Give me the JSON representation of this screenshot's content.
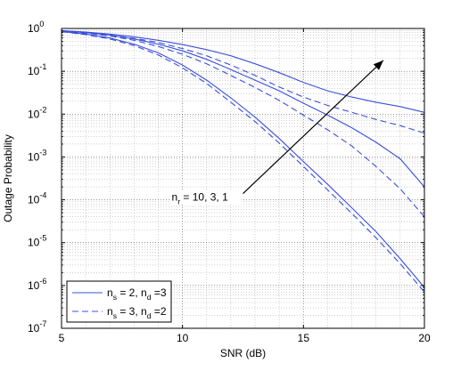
{
  "chart_data": {
    "type": "line",
    "xlabel": "SNR (dB)",
    "ylabel": "Outage Probability",
    "xlim": [
      5,
      20
    ],
    "ylim": [
      1e-07,
      1
    ],
    "yscale": "log",
    "grid": true,
    "x_ticks": [
      5,
      10,
      15,
      20
    ],
    "x_tick_labels": [
      "5",
      "10",
      "15",
      "20"
    ],
    "y_ticks": [
      1e-07,
      1e-06,
      1e-05,
      0.0001,
      0.001,
      0.01,
      0.1,
      1
    ],
    "y_tick_labels": [
      {
        "base": "10",
        "exp": "-7"
      },
      {
        "base": "10",
        "exp": "-6"
      },
      {
        "base": "10",
        "exp": "-5"
      },
      {
        "base": "10",
        "exp": "-4"
      },
      {
        "base": "10",
        "exp": "-3"
      },
      {
        "base": "10",
        "exp": "-2"
      },
      {
        "base": "10",
        "exp": "-1"
      },
      {
        "base": "10",
        "exp": "0"
      }
    ],
    "legend": {
      "placement": "bottom-left",
      "entries": [
        {
          "style": "solid",
          "text": [
            {
              "t": "n"
            },
            {
              "t": "s",
              "sub": true
            },
            {
              "t": " = 2, n"
            },
            {
              "t": "d",
              "sub": true
            },
            {
              "t": " =3"
            }
          ]
        },
        {
          "style": "dashed",
          "text": [
            {
              "t": "n"
            },
            {
              "t": "s",
              "sub": true
            },
            {
              "t": " = 3, n"
            },
            {
              "t": "d",
              "sub": true
            },
            {
              "t": " =2"
            }
          ]
        }
      ]
    },
    "annotation": {
      "text": [
        {
          "t": "n"
        },
        {
          "t": "r",
          "sub": true
        },
        {
          "t": " = 10, 3, 1"
        }
      ],
      "arrow_from": [
        12.5,
        0.00014
      ],
      "arrow_to": [
        18.3,
        0.18
      ]
    },
    "color": "#3b4fd9",
    "series": [
      {
        "style": "solid",
        "x": [
          5,
          6,
          7,
          8,
          9,
          10,
          11,
          12,
          13,
          14,
          15,
          16,
          17,
          18,
          19,
          20
        ],
        "y": [
          0.88,
          0.8,
          0.7,
          0.57,
          0.43,
          0.3,
          0.19,
          0.11,
          0.062,
          0.035,
          0.018,
          0.0095,
          0.0048,
          0.0022,
          0.0009,
          0.0002
        ]
      },
      {
        "style": "dashed",
        "x": [
          5,
          6,
          7,
          8,
          9,
          10,
          11,
          12,
          13,
          14,
          15,
          16,
          17,
          18,
          19,
          20
        ],
        "y": [
          0.87,
          0.78,
          0.67,
          0.53,
          0.38,
          0.25,
          0.15,
          0.08,
          0.042,
          0.021,
          0.0095,
          0.0043,
          0.0018,
          0.0006,
          0.00018,
          4e-05
        ]
      },
      {
        "style": "solid",
        "x": [
          5,
          6,
          7,
          8,
          9,
          10,
          11,
          12,
          13,
          14,
          15,
          16,
          17,
          18,
          19,
          20
        ],
        "y": [
          0.89,
          0.82,
          0.74,
          0.64,
          0.53,
          0.42,
          0.32,
          0.23,
          0.15,
          0.093,
          0.055,
          0.035,
          0.025,
          0.019,
          0.015,
          0.011
        ]
      },
      {
        "style": "dashed",
        "x": [
          5,
          6,
          7,
          8,
          9,
          10,
          11,
          12,
          13,
          14,
          15,
          16,
          17,
          18,
          19,
          20
        ],
        "y": [
          0.88,
          0.8,
          0.7,
          0.59,
          0.47,
          0.34,
          0.23,
          0.14,
          0.08,
          0.043,
          0.025,
          0.016,
          0.011,
          0.0075,
          0.0054,
          0.0036
        ]
      },
      {
        "style": "solid",
        "x": [
          5,
          6,
          7,
          8,
          9,
          10,
          11,
          12,
          13,
          14,
          15,
          16,
          17,
          18,
          19,
          20
        ],
        "y": [
          0.85,
          0.74,
          0.6,
          0.43,
          0.27,
          0.14,
          0.062,
          0.024,
          0.0085,
          0.0027,
          0.00078,
          0.00023,
          6.5e-05,
          1.8e-05,
          4.2e-06,
          9e-07
        ]
      },
      {
        "style": "dashed",
        "x": [
          5,
          6,
          7,
          8,
          9,
          10,
          11,
          12,
          13,
          14,
          15,
          16,
          17,
          18,
          19,
          20
        ],
        "y": [
          0.84,
          0.72,
          0.57,
          0.4,
          0.24,
          0.12,
          0.052,
          0.019,
          0.0067,
          0.0021,
          0.0006,
          0.00017,
          4.8e-05,
          1.3e-05,
          3.2e-06,
          7e-07
        ]
      }
    ]
  }
}
